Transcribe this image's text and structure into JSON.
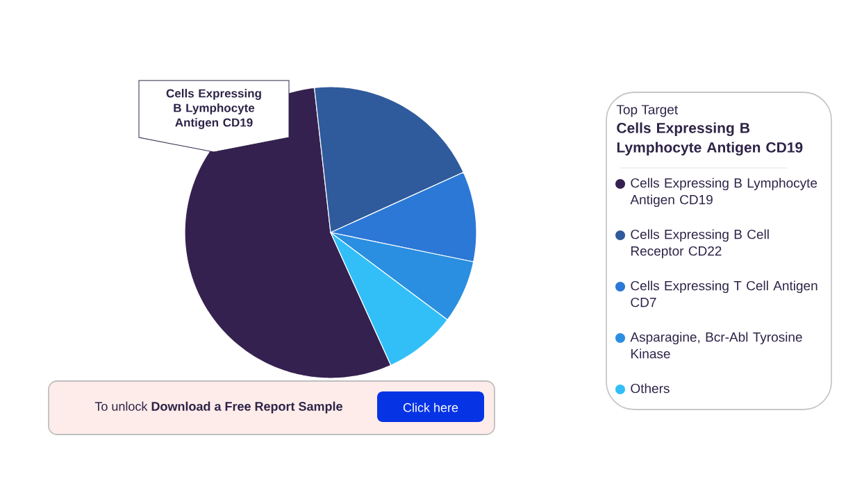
{
  "chart_data": {
    "type": "pie",
    "categories": [
      "Cells Expressing B Lymphocyte Antigen CD19",
      "Cells Expressing B Cell Receptor CD22",
      "Cells Expressing T Cell Antigen CD7",
      "Asparagine,  Bcr-Abl Tyrosine Kinase",
      "Others"
    ],
    "values": [
      55,
      20,
      10,
      7,
      8
    ],
    "colors": [
      "#35214f",
      "#2f5b9c",
      "#2b78d6",
      "#2a8fe0",
      "#32bff8"
    ],
    "legend": "right",
    "annotations": [
      "Cells Expressing B Lymphocyte Antigen CD19",
      "Top Target",
      "Cells Expressing B Lymphocyte Antigen CD19",
      "To unlock **Download a Free Report Sample**",
      "Click here"
    ]
  }
}
